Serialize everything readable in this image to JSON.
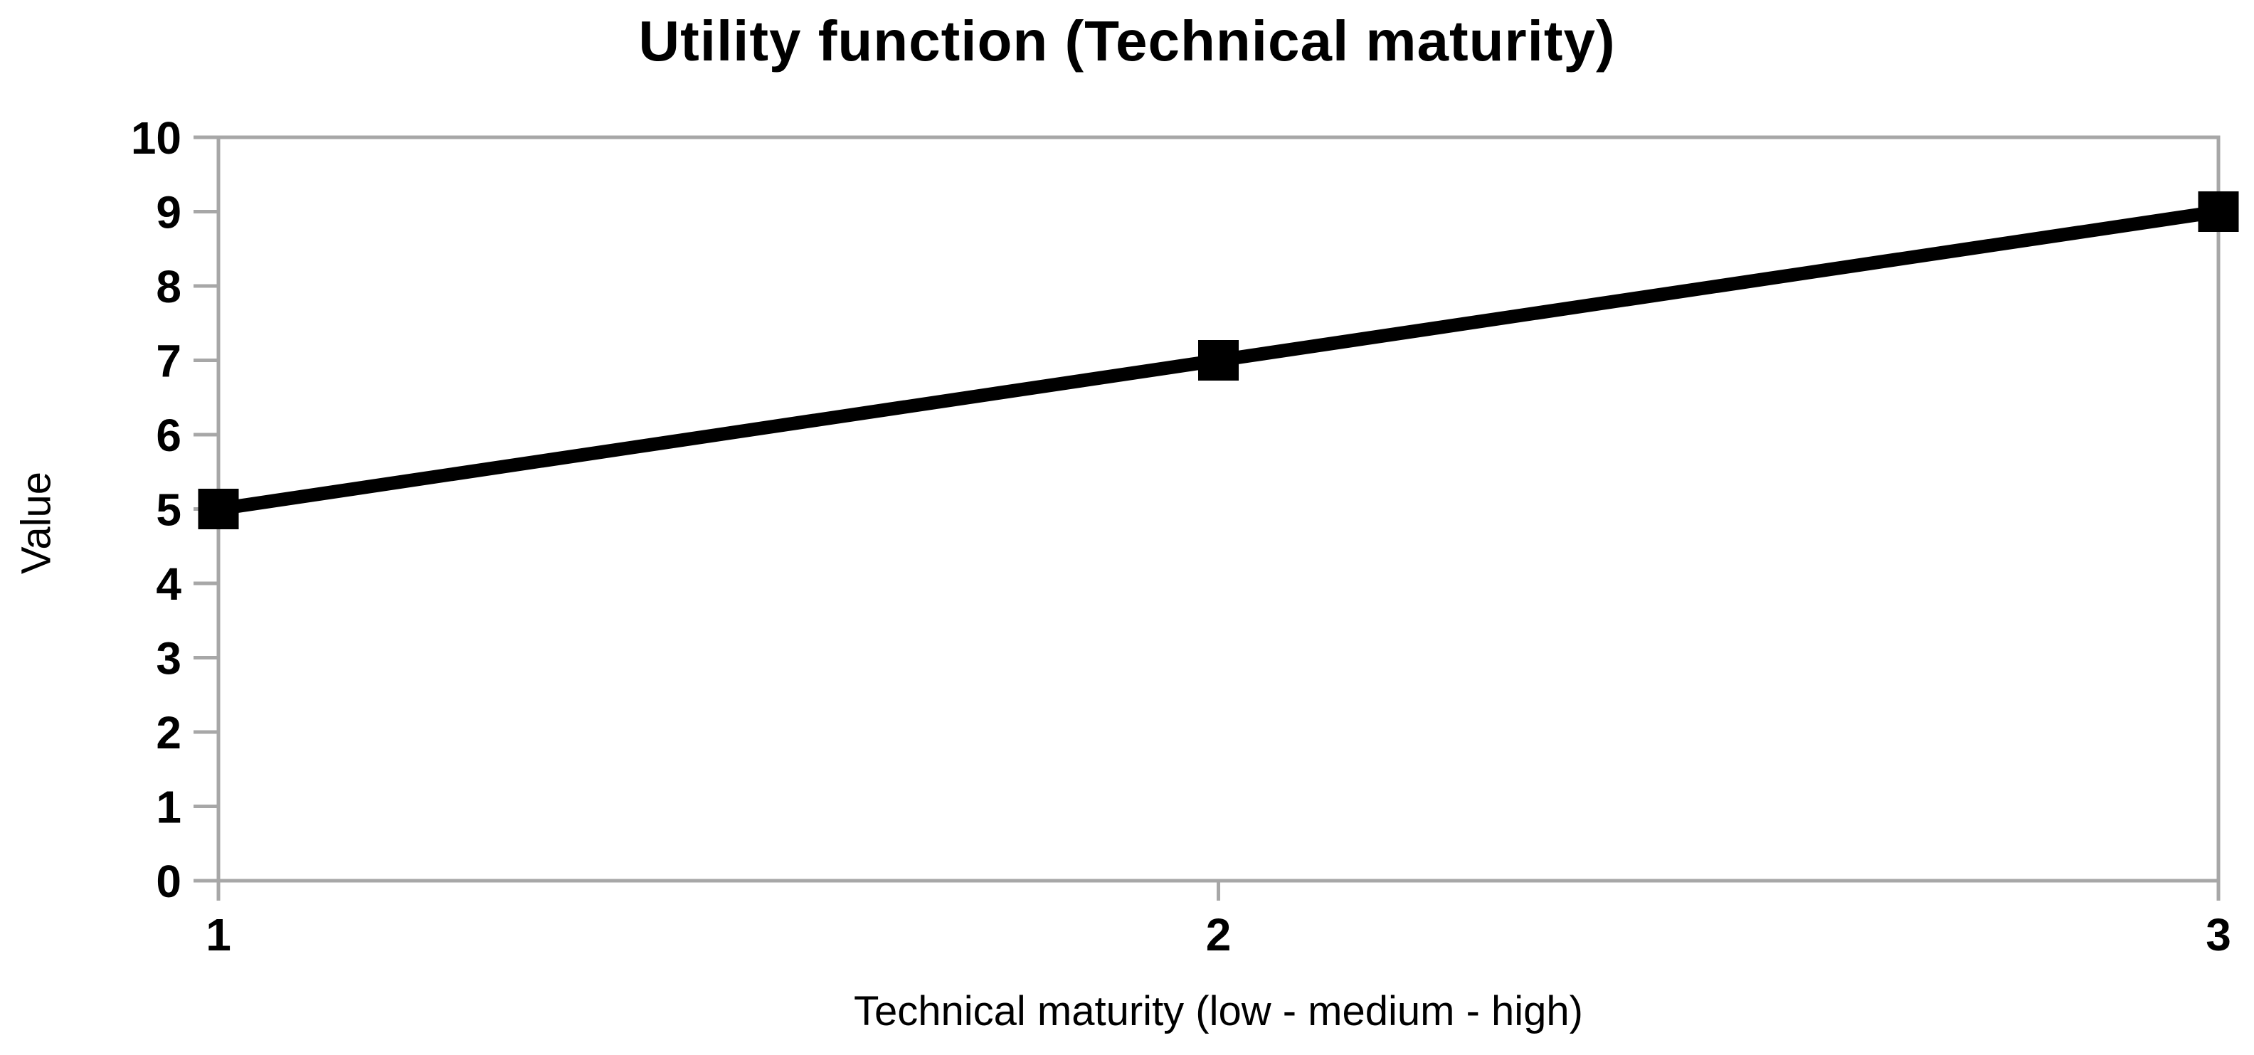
{
  "chart_data": {
    "type": "line",
    "title": "Utility function (Technical maturity)",
    "xlabel": "Technical maturity (low - medium - high)",
    "ylabel": "Value",
    "points": [
      {
        "x": 1,
        "y": 5
      },
      {
        "x": 2,
        "y": 7
      },
      {
        "x": 3,
        "y": 9
      }
    ],
    "xlim": [
      1,
      3
    ],
    "ylim": [
      0,
      10
    ],
    "x_ticks": [
      1,
      2,
      3
    ],
    "y_ticks": [
      0,
      1,
      2,
      3,
      4,
      5,
      6,
      7,
      8,
      9,
      10
    ],
    "grid": false,
    "legend": "none",
    "marker": "square",
    "colors": {
      "line": "#000000",
      "marker": "#000000",
      "axis": "#a7a7a7",
      "text": "#000000",
      "background": "#ffffff"
    }
  }
}
